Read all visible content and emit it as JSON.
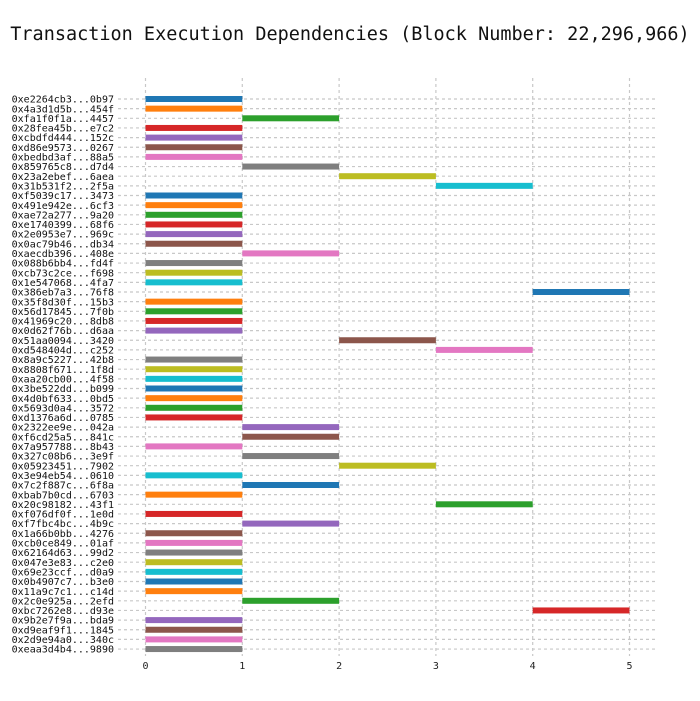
{
  "chart_data": {
    "type": "gantt-bar",
    "title": "Transaction Execution Dependencies (Block Number: 22,296,966)",
    "xlabel": "",
    "ylabel": "",
    "xlim": [
      -0.3,
      5.3
    ],
    "xticks": [
      0,
      1,
      2,
      3,
      4,
      5
    ],
    "grid": true,
    "legend": "none",
    "palette": [
      "#1f77b4",
      "#ff7f0e",
      "#2ca02c",
      "#d62728",
      "#9467bd",
      "#8c564b",
      "#e377c2",
      "#7f7f7f",
      "#bcbd22",
      "#17becf"
    ],
    "bars": [
      {
        "tx": "0xe2264cb3...0b97",
        "start": 0,
        "end": 1
      },
      {
        "tx": "0x4a3d1d5b...454f",
        "start": 0,
        "end": 1
      },
      {
        "tx": "0xfa1f0f1a...4457",
        "start": 1,
        "end": 2
      },
      {
        "tx": "0x28fea45b...e7c2",
        "start": 0,
        "end": 1
      },
      {
        "tx": "0xcbdfd444...152c",
        "start": 0,
        "end": 1
      },
      {
        "tx": "0xd86e9573...0267",
        "start": 0,
        "end": 1
      },
      {
        "tx": "0xbedbd3af...88a5",
        "start": 0,
        "end": 1
      },
      {
        "tx": "0x859765c8...d7d4",
        "start": 1,
        "end": 2
      },
      {
        "tx": "0x23a2ebef...6aea",
        "start": 2,
        "end": 3
      },
      {
        "tx": "0x31b531f2...2f5a",
        "start": 3,
        "end": 4
      },
      {
        "tx": "0xf5039c17...3473",
        "start": 0,
        "end": 1
      },
      {
        "tx": "0x491e942e...6cf3",
        "start": 0,
        "end": 1
      },
      {
        "tx": "0xae72a277...9a20",
        "start": 0,
        "end": 1
      },
      {
        "tx": "0xe1740399...68f6",
        "start": 0,
        "end": 1
      },
      {
        "tx": "0x2e0953e7...969c",
        "start": 0,
        "end": 1
      },
      {
        "tx": "0x0ac79b46...db34",
        "start": 0,
        "end": 1
      },
      {
        "tx": "0xaecdb396...408e",
        "start": 1,
        "end": 2
      },
      {
        "tx": "0x088b6bb4...fd4f",
        "start": 0,
        "end": 1
      },
      {
        "tx": "0xcb73c2ce...f698",
        "start": 0,
        "end": 1
      },
      {
        "tx": "0x1e547068...4fa7",
        "start": 0,
        "end": 1
      },
      {
        "tx": "0x386eb7a3...76f8",
        "start": 4,
        "end": 5
      },
      {
        "tx": "0x35f8d30f...15b3",
        "start": 0,
        "end": 1
      },
      {
        "tx": "0x56d17845...7f0b",
        "start": 0,
        "end": 1
      },
      {
        "tx": "0x41969c20...8db8",
        "start": 0,
        "end": 1
      },
      {
        "tx": "0x0d62f76b...d6aa",
        "start": 0,
        "end": 1
      },
      {
        "tx": "0x51aa0094...3420",
        "start": 2,
        "end": 3
      },
      {
        "tx": "0xd548404d...c252",
        "start": 3,
        "end": 4
      },
      {
        "tx": "0x8a9c5227...42b8",
        "start": 0,
        "end": 1
      },
      {
        "tx": "0x8808f671...1f8d",
        "start": 0,
        "end": 1
      },
      {
        "tx": "0xaa20cb00...4f58",
        "start": 0,
        "end": 1
      },
      {
        "tx": "0x3be522dd...b099",
        "start": 0,
        "end": 1
      },
      {
        "tx": "0x4d0bf633...0bd5",
        "start": 0,
        "end": 1
      },
      {
        "tx": "0x5693d0a4...3572",
        "start": 0,
        "end": 1
      },
      {
        "tx": "0xd1376a6d...0785",
        "start": 0,
        "end": 1
      },
      {
        "tx": "0x2322ee9e...042a",
        "start": 1,
        "end": 2
      },
      {
        "tx": "0xf6cd25a5...841c",
        "start": 1,
        "end": 2
      },
      {
        "tx": "0x7a957788...8b43",
        "start": 0,
        "end": 1
      },
      {
        "tx": "0x327c08b6...3e9f",
        "start": 1,
        "end": 2
      },
      {
        "tx": "0x05923451...7902",
        "start": 2,
        "end": 3
      },
      {
        "tx": "0x3e94eb54...0610",
        "start": 0,
        "end": 1
      },
      {
        "tx": "0x7c2f887c...6f8a",
        "start": 1,
        "end": 2
      },
      {
        "tx": "0xbab7b0cd...6703",
        "start": 0,
        "end": 1
      },
      {
        "tx": "0x20c98182...43f1",
        "start": 3,
        "end": 4
      },
      {
        "tx": "0xf076df0f...1e0d",
        "start": 0,
        "end": 1
      },
      {
        "tx": "0xf7fbc4bc...4b9c",
        "start": 1,
        "end": 2
      },
      {
        "tx": "0x1a66b0bb...4276",
        "start": 0,
        "end": 1
      },
      {
        "tx": "0xcb0ce849...01af",
        "start": 0,
        "end": 1
      },
      {
        "tx": "0x62164d63...99d2",
        "start": 0,
        "end": 1
      },
      {
        "tx": "0x047e3e83...c2e0",
        "start": 0,
        "end": 1
      },
      {
        "tx": "0x69e23ccf...d0a9",
        "start": 0,
        "end": 1
      },
      {
        "tx": "0x0b4907c7...b3e0",
        "start": 0,
        "end": 1
      },
      {
        "tx": "0x11a9c7c1...c14d",
        "start": 0,
        "end": 1
      },
      {
        "tx": "0x2c0e925a...2efd",
        "start": 1,
        "end": 2
      },
      {
        "tx": "0xbc7262e8...d93e",
        "start": 4,
        "end": 5
      },
      {
        "tx": "0x9b2e7f9a...bda9",
        "start": 0,
        "end": 1
      },
      {
        "tx": "0xd9eaf9f1...1845",
        "start": 0,
        "end": 1
      },
      {
        "tx": "0x2d9e94a0...340c",
        "start": 0,
        "end": 1
      },
      {
        "tx": "0xeaa3d4b4...9890",
        "start": 0,
        "end": 1
      }
    ]
  }
}
